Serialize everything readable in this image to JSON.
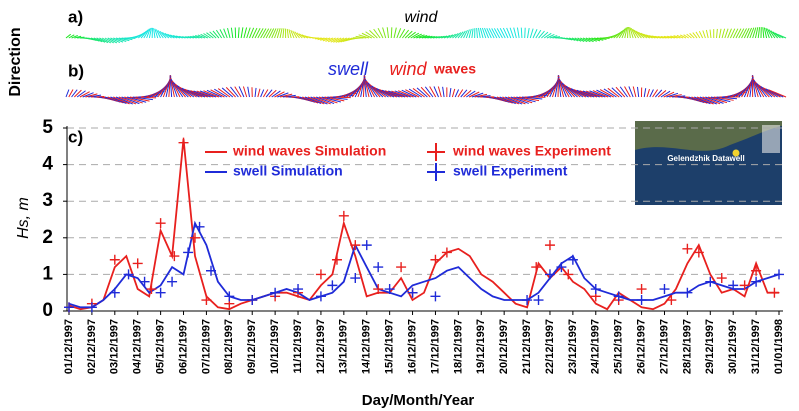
{
  "chart_data": {
    "type": "line",
    "panel_labels": [
      "a)",
      "b)",
      "c)"
    ],
    "panel_a_title": "wind",
    "panel_b_title": [
      "swell",
      "wind",
      "waves"
    ],
    "direction_label": "Direction",
    "xlabel": "Day/Month/Year",
    "ylabel": "Hs, m",
    "inset_label": "Gelendzhik Datawell",
    "xlim": [
      0,
      31
    ],
    "xticks": [
      {
        "value": 0,
        "label": "01/12/1997"
      },
      {
        "value": 1,
        "label": "02/12/1997"
      },
      {
        "value": 2,
        "label": "03/12/1997"
      },
      {
        "value": 3,
        "label": "04/12/1997"
      },
      {
        "value": 4,
        "label": "05/12/1997"
      },
      {
        "value": 5,
        "label": "06/12/1997"
      },
      {
        "value": 6,
        "label": "07/12/1997"
      },
      {
        "value": 7,
        "label": "08/12/1997"
      },
      {
        "value": 8,
        "label": "09/12/1997"
      },
      {
        "value": 9,
        "label": "10/12/1997"
      },
      {
        "value": 10,
        "label": "11/12/1997"
      },
      {
        "value": 11,
        "label": "12/12/1997"
      },
      {
        "value": 12,
        "label": "13/12/1997"
      },
      {
        "value": 13,
        "label": "14/12/1997"
      },
      {
        "value": 14,
        "label": "15/12/1997"
      },
      {
        "value": 15,
        "label": "16/12/1997"
      },
      {
        "value": 16,
        "label": "17/12/1997"
      },
      {
        "value": 17,
        "label": "18/12/1997"
      },
      {
        "value": 18,
        "label": "19/12/1997"
      },
      {
        "value": 19,
        "label": "20/12/1997"
      },
      {
        "value": 20,
        "label": "21/12/1997"
      },
      {
        "value": 21,
        "label": "22/12/1997"
      },
      {
        "value": 22,
        "label": "23/12/1997"
      },
      {
        "value": 23,
        "label": "24/12/1997"
      },
      {
        "value": 24,
        "label": "25/12/1997"
      },
      {
        "value": 25,
        "label": "26/12/1997"
      },
      {
        "value": 26,
        "label": "27/12/1997"
      },
      {
        "value": 27,
        "label": "28/12/1997"
      },
      {
        "value": 28,
        "label": "29/12/1997"
      },
      {
        "value": 29,
        "label": "30/12/1997"
      },
      {
        "value": 30,
        "label": "31/12/1997"
      },
      {
        "value": 31,
        "label": "01/01/1998"
      }
    ],
    "ylim": [
      0,
      5
    ],
    "yticks": [
      0,
      1,
      2,
      3,
      4,
      5
    ],
    "grid": true,
    "legend": "top-center",
    "series": [
      {
        "name": "wind waves Simulation",
        "color": "#e8201e",
        "mode": "line",
        "x": [
          0,
          0.5,
          1,
          1.5,
          2,
          2.5,
          3,
          3.5,
          4,
          4.5,
          5,
          5.5,
          6,
          6.5,
          7,
          7.5,
          8,
          8.5,
          9,
          9.5,
          10,
          10.5,
          11,
          11.5,
          12,
          12.5,
          13,
          13.5,
          14,
          14.5,
          15,
          15.5,
          16,
          16.5,
          17,
          17.5,
          18,
          18.5,
          19,
          19.5,
          20,
          20.5,
          21,
          21.5,
          22,
          22.5,
          23,
          23.5,
          24,
          24.5,
          25,
          25.5,
          26,
          26.5,
          27,
          27.5,
          28,
          28.5,
          29,
          29.5,
          30,
          30.5,
          31
        ],
        "values": [
          0.15,
          0.05,
          0.1,
          0.3,
          1.2,
          1.5,
          0.6,
          0.4,
          2.2,
          1.5,
          4.7,
          1.5,
          0.4,
          0.1,
          0.05,
          0.2,
          0.3,
          0.4,
          0.5,
          0.5,
          0.4,
          0.3,
          0.7,
          1.0,
          2.4,
          1.5,
          0.4,
          0.5,
          0.5,
          0.9,
          0.3,
          0.5,
          1.3,
          1.6,
          1.7,
          1.5,
          1.0,
          0.8,
          0.5,
          0.2,
          0.1,
          1.3,
          0.9,
          1.2,
          0.8,
          0.6,
          0.2,
          0.05,
          0.5,
          0.3,
          0.1,
          0.05,
          0.2,
          0.6,
          1.3,
          1.8,
          1.0,
          0.5,
          0.6,
          0.4,
          1.3,
          0.5,
          0.5
        ]
      },
      {
        "name": "swell Simulation",
        "color": "#1f2bd8",
        "mode": "line",
        "x": [
          0,
          0.5,
          1,
          1.5,
          2,
          2.5,
          3,
          3.5,
          4,
          4.5,
          5,
          5.5,
          6,
          6.5,
          7,
          7.5,
          8,
          8.5,
          9,
          9.5,
          10,
          10.5,
          11,
          11.5,
          12,
          12.5,
          13,
          13.5,
          14,
          14.5,
          15,
          15.5,
          16,
          16.5,
          17,
          17.5,
          18,
          18.5,
          19,
          19.5,
          20,
          20.5,
          21,
          21.5,
          22,
          22.5,
          23,
          23.5,
          24,
          24.5,
          25,
          25.5,
          26,
          26.5,
          27,
          27.5,
          28,
          28.5,
          29,
          29.5,
          30,
          30.5,
          31
        ],
        "values": [
          0.2,
          0.1,
          0.1,
          0.3,
          0.6,
          1.0,
          0.9,
          0.5,
          0.7,
          1.2,
          1.0,
          2.4,
          1.8,
          0.8,
          0.4,
          0.3,
          0.3,
          0.4,
          0.5,
          0.6,
          0.5,
          0.3,
          0.4,
          0.5,
          0.8,
          1.8,
          1.2,
          0.6,
          0.5,
          0.4,
          0.7,
          0.8,
          0.9,
          1.1,
          1.2,
          0.9,
          0.6,
          0.4,
          0.3,
          0.3,
          0.3,
          0.5,
          0.9,
          1.3,
          1.5,
          0.9,
          0.6,
          0.5,
          0.4,
          0.3,
          0.3,
          0.3,
          0.4,
          0.5,
          0.5,
          0.7,
          0.8,
          0.7,
          0.6,
          0.6,
          0.8,
          0.9,
          1.0
        ]
      },
      {
        "name": "wind waves Experiment",
        "color": "#e8201e",
        "mode": "marker",
        "x": [
          0,
          1,
          2,
          3,
          3.6,
          4,
          4.6,
          5,
          5.5,
          6,
          7,
          8,
          9,
          10,
          11,
          11.7,
          12,
          12.5,
          13.5,
          14.5,
          15,
          16,
          16.5,
          20.4,
          21,
          21.8,
          23,
          24,
          25,
          26.3,
          27,
          27.5,
          28.5,
          29.5,
          30,
          30.8
        ],
        "values": [
          0.1,
          0.2,
          1.4,
          1.3,
          0.6,
          2.4,
          1.5,
          4.6,
          2.0,
          0.3,
          0.2,
          0.3,
          0.4,
          0.5,
          1.0,
          1.4,
          2.6,
          1.8,
          0.6,
          1.2,
          0.5,
          1.4,
          1.6,
          1.2,
          1.8,
          1.0,
          0.4,
          0.3,
          0.6,
          0.3,
          1.7,
          1.6,
          0.9,
          0.7,
          1.1,
          0.5
        ]
      },
      {
        "name": "swell Experiment",
        "color": "#1f2bd8",
        "mode": "marker",
        "x": [
          0,
          1,
          2,
          2.6,
          3.3,
          4,
          4.5,
          5.2,
          5.7,
          6.2,
          7,
          8,
          9,
          10,
          11,
          11.5,
          12.5,
          13,
          13.5,
          14,
          15,
          16,
          20,
          20.5,
          21,
          21.5,
          22,
          23,
          24,
          25,
          26,
          27,
          28,
          29,
          30,
          31
        ],
        "values": [
          0.1,
          0.1,
          0.5,
          1.0,
          0.8,
          0.5,
          0.8,
          1.6,
          2.3,
          1.1,
          0.4,
          0.3,
          0.5,
          0.6,
          0.4,
          0.7,
          0.9,
          1.8,
          1.2,
          0.6,
          0.5,
          0.4,
          0.3,
          0.3,
          1.0,
          1.2,
          1.4,
          0.6,
          0.4,
          0.3,
          0.6,
          0.5,
          0.8,
          0.7,
          0.8,
          1.0
        ]
      }
    ]
  }
}
